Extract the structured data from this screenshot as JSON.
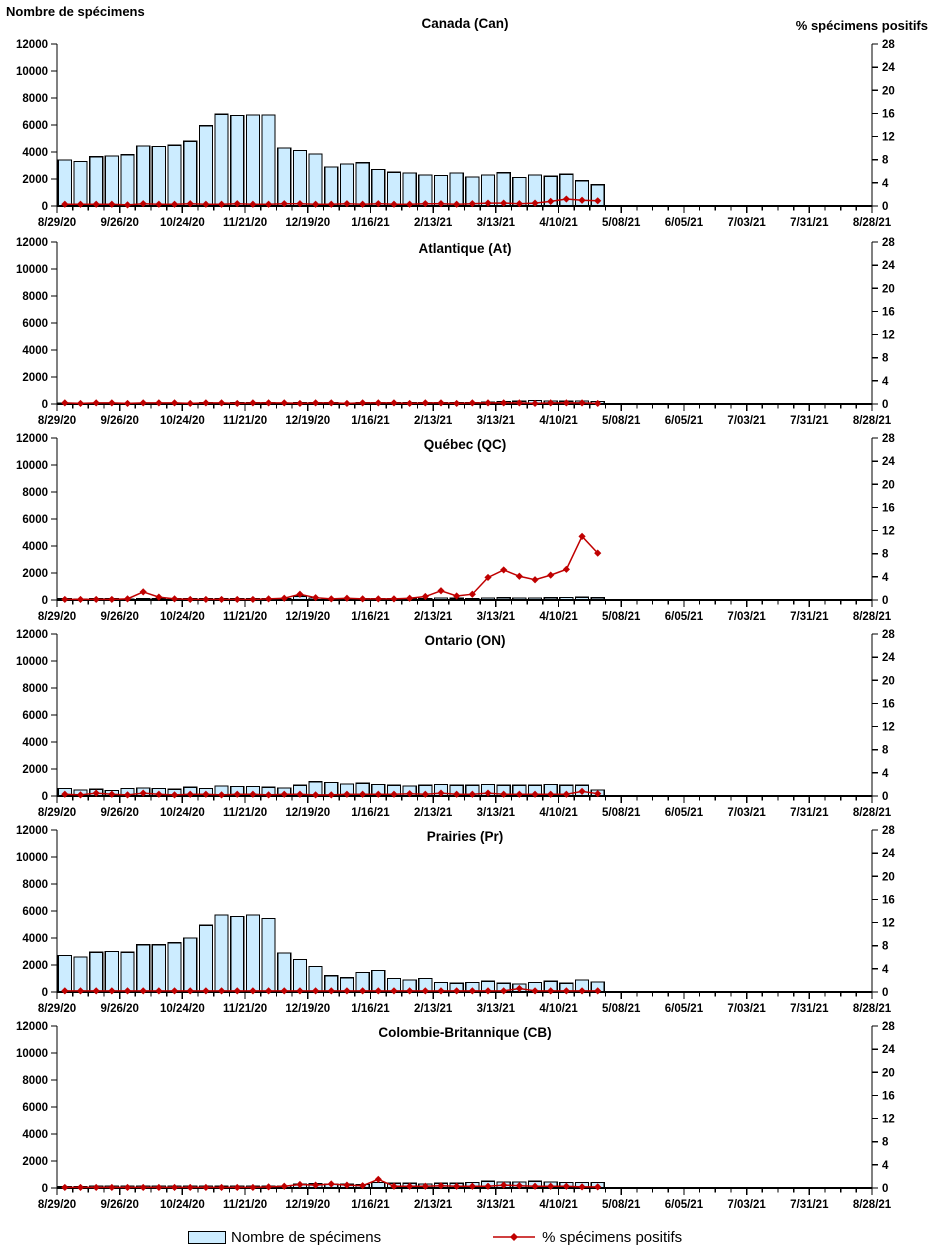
{
  "chart_data": {
    "type": "bar+line",
    "left_axis": {
      "title": "Nombre de spécimens",
      "min": 0,
      "max": 12000,
      "step": 2000
    },
    "right_axis": {
      "title": "% spécimens positifs",
      "min": 0,
      "max": 28,
      "step": 4
    },
    "x_axis": {
      "weekly_dates": [
        "8/29/20",
        "9/05/20",
        "9/12/20",
        "9/19/20",
        "9/26/20",
        "10/03/20",
        "10/10/20",
        "10/17/20",
        "10/24/20",
        "10/31/20",
        "11/07/20",
        "11/14/20",
        "11/21/20",
        "11/28/20",
        "12/05/20",
        "12/12/20",
        "12/19/20",
        "12/26/20",
        "1/02/21",
        "1/09/21",
        "1/16/21",
        "1/23/21",
        "1/30/21",
        "2/06/21",
        "2/13/21",
        "2/20/21",
        "2/27/21",
        "3/06/21",
        "3/13/21",
        "3/20/21",
        "3/27/21",
        "4/03/21",
        "4/10/21",
        "4/17/21",
        "4/24/21"
      ],
      "tick_labels": [
        "8/29/20",
        "9/26/20",
        "10/24/20",
        "11/21/20",
        "12/19/20",
        "1/16/21",
        "2/13/21",
        "3/13/21",
        "4/10/21",
        "5/08/21",
        "6/05/21",
        "7/03/21",
        "7/31/21",
        "8/28/21"
      ],
      "total_weeks": 52,
      "minor_tick_every_weeks": 1,
      "label_every_weeks": 4
    },
    "legend": [
      {
        "label": "Nombre de spécimens",
        "swatch": "bar"
      },
      {
        "label": "% spécimens positifs",
        "swatch": "line-diamond"
      }
    ],
    "colors": {
      "bar_fill": "#CCECFF",
      "bar_border": "#000000",
      "line": "#C00000",
      "text": "#000000"
    },
    "panels": [
      {
        "id": "canada",
        "title": "Canada (Can)",
        "series": [
          {
            "name": "Nombre de spécimens",
            "axis": "left",
            "values": [
              3400,
              3300,
              3650,
              3700,
              3800,
              4450,
              4400,
              4500,
              4800,
              5950,
              6800,
              6700,
              6750,
              6750,
              4300,
              4100,
              3850,
              2900,
              3100,
              3200,
              2700,
              2500,
              2450,
              2300,
              2250,
              2450,
              2150,
              2300,
              2470,
              2100,
              2300,
              2200,
              2350,
              1870,
              1580
            ]
          },
          {
            "name": "% spécimens positifs",
            "axis": "right",
            "values": [
              0.3,
              0.3,
              0.3,
              0.3,
              0.2,
              0.4,
              0.3,
              0.3,
              0.4,
              0.3,
              0.3,
              0.4,
              0.3,
              0.3,
              0.4,
              0.4,
              0.3,
              0.3,
              0.4,
              0.3,
              0.4,
              0.3,
              0.3,
              0.4,
              0.4,
              0.3,
              0.4,
              0.5,
              0.5,
              0.4,
              0.5,
              0.8,
              1.2,
              1.0,
              0.9
            ]
          }
        ]
      },
      {
        "id": "atlantique",
        "title": "Atlantique (At)",
        "series": [
          {
            "name": "Nombre de spécimens",
            "axis": "left",
            "values": [
              60,
              50,
              60,
              70,
              60,
              70,
              80,
              70,
              80,
              90,
              80,
              90,
              100,
              90,
              80,
              90,
              100,
              90,
              80,
              90,
              100,
              110,
              100,
              90,
              100,
              110,
              120,
              150,
              180,
              200,
              260,
              220,
              200,
              230,
              180
            ]
          },
          {
            "name": "% spécimens positifs",
            "axis": "right",
            "values": [
              0.2,
              0.1,
              0.2,
              0.2,
              0.1,
              0.2,
              0.2,
              0.2,
              0.1,
              0.2,
              0.2,
              0.1,
              0.2,
              0.2,
              0.2,
              0.1,
              0.2,
              0.2,
              0.1,
              0.2,
              0.2,
              0.2,
              0.1,
              0.2,
              0.2,
              0.1,
              0.2,
              0.2,
              0.2,
              0.2,
              0.1,
              0.2,
              0.2,
              0.2,
              0.1
            ]
          }
        ]
      },
      {
        "id": "quebec",
        "title": "Québec (QC)",
        "series": [
          {
            "name": "Nombre de spécimens",
            "axis": "left",
            "values": [
              100,
              80,
              100,
              90,
              80,
              100,
              120,
              100,
              90,
              100,
              110,
              100,
              90,
              100,
              120,
              280,
              150,
              100,
              90,
              100,
              110,
              100,
              90,
              100,
              150,
              130,
              120,
              140,
              160,
              150,
              140,
              160,
              180,
              200,
              170
            ]
          },
          {
            "name": "% spécimens positifs",
            "axis": "right",
            "values": [
              0.1,
              0.1,
              0.1,
              0.1,
              0.2,
              1.4,
              0.5,
              0.2,
              0.1,
              0.1,
              0.1,
              0.1,
              0.1,
              0.2,
              0.3,
              1.0,
              0.4,
              0.2,
              0.3,
              0.2,
              0.2,
              0.2,
              0.3,
              0.6,
              1.6,
              0.7,
              1.0,
              3.9,
              5.2,
              4.1,
              3.5,
              4.3,
              5.3,
              11.0,
              8.1
            ]
          }
        ]
      },
      {
        "id": "ontario",
        "title": "Ontario (ON)",
        "series": [
          {
            "name": "Nombre de spécimens",
            "axis": "left",
            "values": [
              550,
              450,
              500,
              400,
              550,
              600,
              550,
              500,
              650,
              550,
              750,
              700,
              700,
              650,
              600,
              800,
              1050,
              1000,
              900,
              950,
              850,
              800,
              750,
              800,
              850,
              800,
              800,
              850,
              800,
              800,
              800,
              850,
              800,
              800,
              450
            ]
          },
          {
            "name": "% spécimens positifs",
            "axis": "right",
            "values": [
              0.3,
              0.2,
              0.5,
              0.3,
              0.2,
              0.5,
              0.3,
              0.2,
              0.3,
              0.3,
              0.2,
              0.3,
              0.3,
              0.2,
              0.3,
              0.3,
              0.2,
              0.2,
              0.3,
              0.3,
              0.3,
              0.3,
              0.4,
              0.3,
              0.5,
              0.3,
              0.3,
              0.5,
              0.3,
              0.3,
              0.3,
              0.3,
              0.3,
              0.8,
              0.4
            ]
          }
        ]
      },
      {
        "id": "prairies",
        "title": "Prairies (Pr)",
        "series": [
          {
            "name": "Nombre de spécimens",
            "axis": "left",
            "values": [
              2700,
              2600,
              2950,
              3000,
              2950,
              3500,
              3500,
              3650,
              4000,
              4950,
              5700,
              5600,
              5700,
              5450,
              2900,
              2400,
              1900,
              1200,
              1050,
              1450,
              1600,
              1000,
              900,
              1000,
              700,
              650,
              700,
              800,
              650,
              600,
              700,
              800,
              650,
              900,
              750
            ]
          },
          {
            "name": "% spécimens positifs",
            "axis": "right",
            "values": [
              0.2,
              0.2,
              0.2,
              0.2,
              0.2,
              0.2,
              0.2,
              0.2,
              0.2,
              0.2,
              0.2,
              0.2,
              0.2,
              0.2,
              0.2,
              0.2,
              0.2,
              0.2,
              0.2,
              0.2,
              0.2,
              0.2,
              0.2,
              0.2,
              0.2,
              0.2,
              0.2,
              0.2,
              0.2,
              0.6,
              0.2,
              0.2,
              0.2,
              0.2,
              0.2
            ]
          }
        ]
      },
      {
        "id": "colombie-britannique",
        "title": "Colombie-Britannique (CB)",
        "series": [
          {
            "name": "Nombre de spécimens",
            "axis": "left",
            "values": [
              120,
              100,
              150,
              140,
              150,
              140,
              150,
              140,
              150,
              140,
              130,
              140,
              150,
              140,
              150,
              300,
              320,
              300,
              280,
              250,
              400,
              350,
              350,
              300,
              350,
              350,
              400,
              500,
              450,
              450,
              500,
              450,
              400,
              400,
              400
            ]
          },
          {
            "name": "% spécimens positifs",
            "axis": "right",
            "values": [
              0.1,
              0.1,
              0.1,
              0.1,
              0.1,
              0.1,
              0.1,
              0.1,
              0.1,
              0.1,
              0.1,
              0.1,
              0.1,
              0.2,
              0.3,
              0.6,
              0.5,
              0.7,
              0.5,
              0.4,
              1.5,
              0.3,
              0.3,
              0.3,
              0.4,
              0.3,
              0.3,
              0.3,
              0.5,
              0.4,
              0.3,
              0.3,
              0.3,
              0.2,
              0.2
            ]
          }
        ]
      }
    ]
  }
}
